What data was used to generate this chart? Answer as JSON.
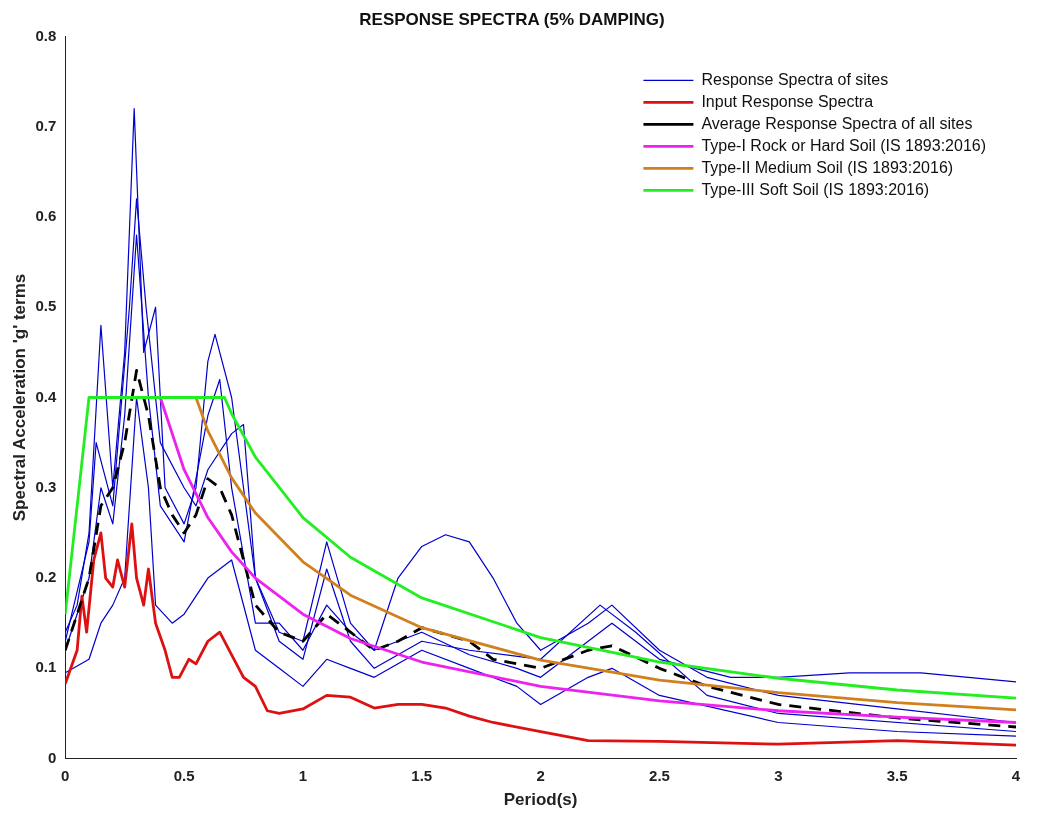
{
  "chart_data": {
    "type": "line",
    "title": "RESPONSE SPECTRA (5% DAMPING)",
    "xlabel": "Period(s)",
    "ylabel": "Spectral Acceleration 'g' terms",
    "xlim": [
      0,
      4
    ],
    "ylim": [
      0,
      0.8
    ],
    "xticks": [
      0,
      0.5,
      1,
      1.5,
      2,
      2.5,
      3,
      3.5,
      4
    ],
    "yticks": [
      0,
      0.1,
      0.2,
      0.3,
      0.4,
      0.5,
      0.6,
      0.7,
      0.8
    ],
    "grid": false,
    "legend": "top right",
    "marker": "none",
    "series": [
      {
        "name": "Response Spectra of sites",
        "color": "#0000cc",
        "x": [
          0,
          0.05,
          0.1,
          0.15,
          0.2,
          0.25,
          0.29,
          0.33,
          0.38,
          0.42,
          0.5,
          0.55,
          0.6,
          0.63,
          0.7,
          0.8,
          0.9,
          1,
          1.1,
          1.2,
          1.3,
          1.4,
          1.5,
          1.6,
          1.7,
          1.8,
          1.9,
          2,
          2.2,
          2.3,
          2.5,
          2.7,
          3,
          3.5,
          4
        ],
        "values": [
          0.14,
          0.17,
          0.25,
          0.48,
          0.3,
          0.45,
          0.72,
          0.45,
          0.5,
          0.3,
          0.26,
          0.3,
          0.44,
          0.47,
          0.4,
          0.2,
          0.14,
          0.13,
          0.24,
          0.15,
          0.12,
          0.2,
          0.235,
          0.248,
          0.24,
          0.2,
          0.15,
          0.12,
          0.15,
          0.17,
          0.12,
          0.09,
          0.07,
          0.055,
          0.04
        ]
      },
      {
        "color": "#0000cc",
        "x": [
          0,
          0.1,
          0.15,
          0.2,
          0.25,
          0.3,
          0.35,
          0.38,
          0.45,
          0.5,
          0.6,
          0.7,
          0.8,
          0.9,
          1,
          1.1,
          1.2,
          1.3,
          1.5,
          1.7,
          1.9,
          2,
          2.2,
          2.3,
          2.5,
          3,
          3.5,
          4
        ],
        "values": [
          0.095,
          0.11,
          0.15,
          0.17,
          0.2,
          0.4,
          0.3,
          0.17,
          0.15,
          0.16,
          0.2,
          0.22,
          0.12,
          0.1,
          0.08,
          0.11,
          0.1,
          0.09,
          0.12,
          0.1,
          0.08,
          0.06,
          0.09,
          0.1,
          0.07,
          0.04,
          0.03,
          0.025
        ]
      },
      {
        "color": "#0000cc",
        "x": [
          0,
          0.1,
          0.15,
          0.2,
          0.25,
          0.3,
          0.35,
          0.4,
          0.5,
          0.6,
          0.65,
          0.7,
          0.8,
          0.9,
          1,
          1.1,
          1.2,
          1.3,
          1.5,
          1.7,
          1.9,
          2,
          2.2,
          2.3,
          2.5,
          2.8,
          3,
          3.3,
          3.6,
          3.8,
          4
        ],
        "values": [
          0.12,
          0.2,
          0.3,
          0.26,
          0.38,
          0.58,
          0.4,
          0.28,
          0.24,
          0.38,
          0.42,
          0.3,
          0.15,
          0.15,
          0.12,
          0.17,
          0.14,
          0.12,
          0.14,
          0.115,
          0.1,
          0.09,
          0.13,
          0.15,
          0.11,
          0.09,
          0.09,
          0.095,
          0.095,
          0.09,
          0.085
        ]
      },
      {
        "color": "#0000cc",
        "x": [
          0,
          0.1,
          0.13,
          0.2,
          0.27,
          0.3,
          0.34,
          0.4,
          0.5,
          0.55,
          0.6,
          0.7,
          0.75,
          0.8,
          0.9,
          1,
          1.1,
          1.2,
          1.3,
          1.5,
          1.7,
          2,
          2.25,
          2.4,
          2.7,
          3,
          4
        ],
        "values": [
          0.13,
          0.24,
          0.35,
          0.28,
          0.5,
          0.62,
          0.5,
          0.35,
          0.3,
          0.28,
          0.32,
          0.36,
          0.37,
          0.2,
          0.13,
          0.11,
          0.21,
          0.13,
          0.1,
          0.13,
          0.12,
          0.11,
          0.17,
          0.14,
          0.07,
          0.05,
          0.03
        ]
      },
      {
        "name": "Input Response Spectra",
        "color": "#dd1111",
        "x": [
          0,
          0.05,
          0.07,
          0.09,
          0.12,
          0.15,
          0.17,
          0.2,
          0.22,
          0.25,
          0.28,
          0.3,
          0.33,
          0.35,
          0.38,
          0.42,
          0.45,
          0.48,
          0.52,
          0.55,
          0.6,
          0.65,
          0.7,
          0.75,
          0.8,
          0.85,
          0.9,
          1,
          1.1,
          1.2,
          1.3,
          1.4,
          1.5,
          1.6,
          1.7,
          1.8,
          2,
          2.2,
          2.5,
          3,
          3.5,
          4
        ],
        "values": [
          0.083,
          0.12,
          0.18,
          0.14,
          0.22,
          0.25,
          0.2,
          0.19,
          0.22,
          0.19,
          0.26,
          0.2,
          0.17,
          0.21,
          0.15,
          0.12,
          0.09,
          0.09,
          0.11,
          0.105,
          0.13,
          0.14,
          0.115,
          0.09,
          0.08,
          0.053,
          0.05,
          0.055,
          0.07,
          0.068,
          0.056,
          0.06,
          0.06,
          0.056,
          0.047,
          0.04,
          0.03,
          0.02,
          0.019,
          0.016,
          0.02,
          0.015
        ]
      },
      {
        "name": "Average Response Spectra of all sites",
        "color": "#000000",
        "line_style": "dashed",
        "x": [
          0,
          0.1,
          0.15,
          0.2,
          0.25,
          0.3,
          0.35,
          0.4,
          0.45,
          0.5,
          0.55,
          0.6,
          0.65,
          0.7,
          0.8,
          0.9,
          1,
          1.1,
          1.2,
          1.3,
          1.4,
          1.5,
          1.7,
          1.8,
          2,
          2.2,
          2.3,
          2.5,
          2.7,
          3,
          3.5,
          4
        ],
        "values": [
          0.12,
          0.2,
          0.28,
          0.3,
          0.35,
          0.43,
          0.38,
          0.3,
          0.27,
          0.25,
          0.27,
          0.31,
          0.3,
          0.27,
          0.17,
          0.14,
          0.13,
          0.16,
          0.14,
          0.12,
          0.13,
          0.145,
          0.13,
          0.11,
          0.1,
          0.12,
          0.125,
          0.1,
          0.08,
          0.06,
          0.045,
          0.035
        ]
      },
      {
        "name": "Type-I Rock or Hard Soil (IS 1893:2016)",
        "color": "#ee22ee",
        "x": [
          0.4,
          0.5,
          0.6,
          0.7,
          0.8,
          1,
          1.2,
          1.5,
          2,
          2.5,
          3,
          3.5,
          4
        ],
        "values": [
          0.4,
          0.32,
          0.267,
          0.229,
          0.2,
          0.16,
          0.133,
          0.107,
          0.08,
          0.064,
          0.053,
          0.046,
          0.04
        ]
      },
      {
        "name": "Type-II Medium Soil (IS 1893:2016)",
        "color": "#d2801e",
        "x": [
          0.55,
          0.6,
          0.7,
          0.8,
          1,
          1.2,
          1.5,
          2,
          2.5,
          3,
          3.5,
          4
        ],
        "values": [
          0.4,
          0.363,
          0.311,
          0.272,
          0.218,
          0.181,
          0.145,
          0.109,
          0.087,
          0.073,
          0.062,
          0.054
        ]
      },
      {
        "name": "Type-III Soft Soil (IS 1893:2016)",
        "color": "#22ee22",
        "x": [
          0,
          0.1,
          0.67,
          0.7,
          0.8,
          1,
          1.2,
          1.5,
          2,
          2.5,
          3,
          3.5,
          4
        ],
        "values": [
          0.16,
          0.4,
          0.4,
          0.382,
          0.334,
          0.267,
          0.223,
          0.178,
          0.134,
          0.107,
          0.089,
          0.076,
          0.067
        ]
      }
    ]
  }
}
